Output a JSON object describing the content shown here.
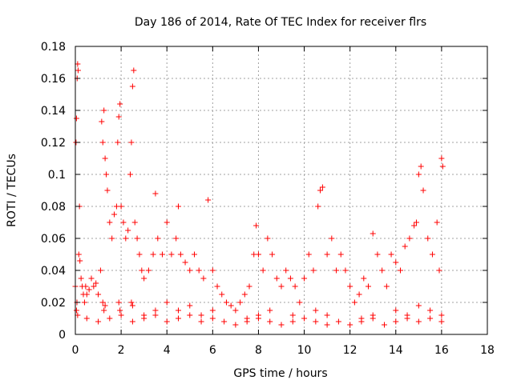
{
  "chart_data": {
    "type": "scatter",
    "title": "Day 186 of 2014, Rate Of TEC Index for receiver flrs",
    "xlabel": "GPS time / hours",
    "ylabel": "ROTI / TECUs",
    "xlim": [
      0,
      18
    ],
    "ylim": [
      0,
      0.18
    ],
    "xticks": [
      0,
      2,
      4,
      6,
      8,
      10,
      12,
      14,
      16,
      18
    ],
    "xtick_labels": [
      "0",
      "2",
      "4",
      "6",
      "8",
      "10",
      "12",
      "14",
      "16",
      "18"
    ],
    "yticks": [
      0,
      0.02,
      0.04,
      0.06,
      0.08,
      0.1,
      0.12,
      0.14,
      0.16,
      0.18
    ],
    "ytick_labels": [
      "0",
      "0.02",
      "0.04",
      "0.06",
      "0.08",
      "0.1",
      "0.12",
      "0.14",
      "0.16",
      "0.18"
    ],
    "grid": true,
    "marker": "+",
    "color": "#ff0000",
    "series": [
      {
        "name": "ROTI",
        "x": [
          0.0,
          0.03,
          0.05,
          0.08,
          0.1,
          0.12,
          0.15,
          0.18,
          0.2,
          0.25,
          0.3,
          0.35,
          0.4,
          0.45,
          0.5,
          0.6,
          0.7,
          0.8,
          0.9,
          1.0,
          1.1,
          1.15,
          1.2,
          1.25,
          1.3,
          1.35,
          1.4,
          1.5,
          1.6,
          1.7,
          1.8,
          1.85,
          1.9,
          1.95,
          2.0,
          2.1,
          2.2,
          2.3,
          2.4,
          2.45,
          2.5,
          2.55,
          2.6,
          2.7,
          2.8,
          2.9,
          3.0,
          3.2,
          3.4,
          3.5,
          3.6,
          3.8,
          4.0,
          4.2,
          4.4,
          4.5,
          4.6,
          4.8,
          5.0,
          5.2,
          5.4,
          5.6,
          5.8,
          6.0,
          6.2,
          6.4,
          6.6,
          6.8,
          7.0,
          7.2,
          7.4,
          7.6,
          7.8,
          7.9,
          8.0,
          8.2,
          8.4,
          8.6,
          8.8,
          9.0,
          9.2,
          9.4,
          9.6,
          9.8,
          10.0,
          10.2,
          10.4,
          10.6,
          10.7,
          10.8,
          11.0,
          11.2,
          11.4,
          11.6,
          11.8,
          12.0,
          12.2,
          12.4,
          12.6,
          12.8,
          13.0,
          13.2,
          13.4,
          13.6,
          13.8,
          14.0,
          14.2,
          14.4,
          14.6,
          14.8,
          14.9,
          15.0,
          15.1,
          15.2,
          15.4,
          15.6,
          15.8,
          15.9,
          16.0,
          16.05,
          0.05,
          0.07,
          0.1,
          1.2,
          1.25,
          1.3,
          1.9,
          1.95,
          2.45,
          2.5,
          3.0,
          3.5,
          4.0,
          4.5,
          5.0,
          5.5,
          6.0,
          7.5,
          8.0,
          8.5,
          9.5,
          10.5,
          11.0,
          12.5,
          13.0,
          14.0,
          14.5,
          15.0,
          15.5,
          16.0,
          0.5,
          1.0,
          1.5,
          2.0,
          2.5,
          3.0,
          3.5,
          4.0,
          4.5,
          5.0,
          5.5,
          6.0,
          6.5,
          7.0,
          7.5,
          8.0,
          8.5,
          9.0,
          9.5,
          10.0,
          10.5,
          11.0,
          11.5,
          12.0,
          12.5,
          13.0,
          13.5,
          14.0,
          14.5,
          15.0,
          15.5,
          16.0
        ],
        "y": [
          0.03,
          0.12,
          0.135,
          0.16,
          0.169,
          0.165,
          0.05,
          0.08,
          0.046,
          0.035,
          0.03,
          0.025,
          0.02,
          0.03,
          0.025,
          0.028,
          0.035,
          0.03,
          0.032,
          0.025,
          0.04,
          0.133,
          0.12,
          0.14,
          0.11,
          0.1,
          0.09,
          0.07,
          0.06,
          0.075,
          0.08,
          0.12,
          0.136,
          0.144,
          0.08,
          0.07,
          0.06,
          0.065,
          0.1,
          0.12,
          0.155,
          0.165,
          0.07,
          0.06,
          0.05,
          0.04,
          0.035,
          0.04,
          0.05,
          0.088,
          0.06,
          0.05,
          0.07,
          0.05,
          0.06,
          0.08,
          0.05,
          0.045,
          0.04,
          0.05,
          0.04,
          0.035,
          0.084,
          0.04,
          0.03,
          0.025,
          0.02,
          0.018,
          0.015,
          0.02,
          0.025,
          0.03,
          0.05,
          0.068,
          0.05,
          0.04,
          0.06,
          0.05,
          0.035,
          0.03,
          0.04,
          0.035,
          0.03,
          0.02,
          0.035,
          0.05,
          0.04,
          0.08,
          0.09,
          0.092,
          0.05,
          0.06,
          0.04,
          0.05,
          0.04,
          0.03,
          0.02,
          0.025,
          0.035,
          0.03,
          0.063,
          0.05,
          0.04,
          0.03,
          0.05,
          0.045,
          0.04,
          0.055,
          0.06,
          0.068,
          0.07,
          0.1,
          0.105,
          0.09,
          0.06,
          0.05,
          0.07,
          0.04,
          0.11,
          0.105,
          0.015,
          0.02,
          0.012,
          0.02,
          0.015,
          0.018,
          0.02,
          0.015,
          0.02,
          0.018,
          0.012,
          0.015,
          0.02,
          0.015,
          0.018,
          0.012,
          0.015,
          0.01,
          0.012,
          0.015,
          0.012,
          0.015,
          0.012,
          0.01,
          0.012,
          0.015,
          0.012,
          0.018,
          0.015,
          0.012,
          0.01,
          0.008,
          0.01,
          0.012,
          0.008,
          0.01,
          0.012,
          0.008,
          0.01,
          0.012,
          0.008,
          0.01,
          0.008,
          0.006,
          0.008,
          0.01,
          0.008,
          0.006,
          0.008,
          0.01,
          0.008,
          0.006,
          0.008,
          0.006,
          0.008,
          0.01,
          0.006,
          0.008,
          0.01,
          0.008,
          0.01,
          0.008
        ]
      }
    ]
  }
}
